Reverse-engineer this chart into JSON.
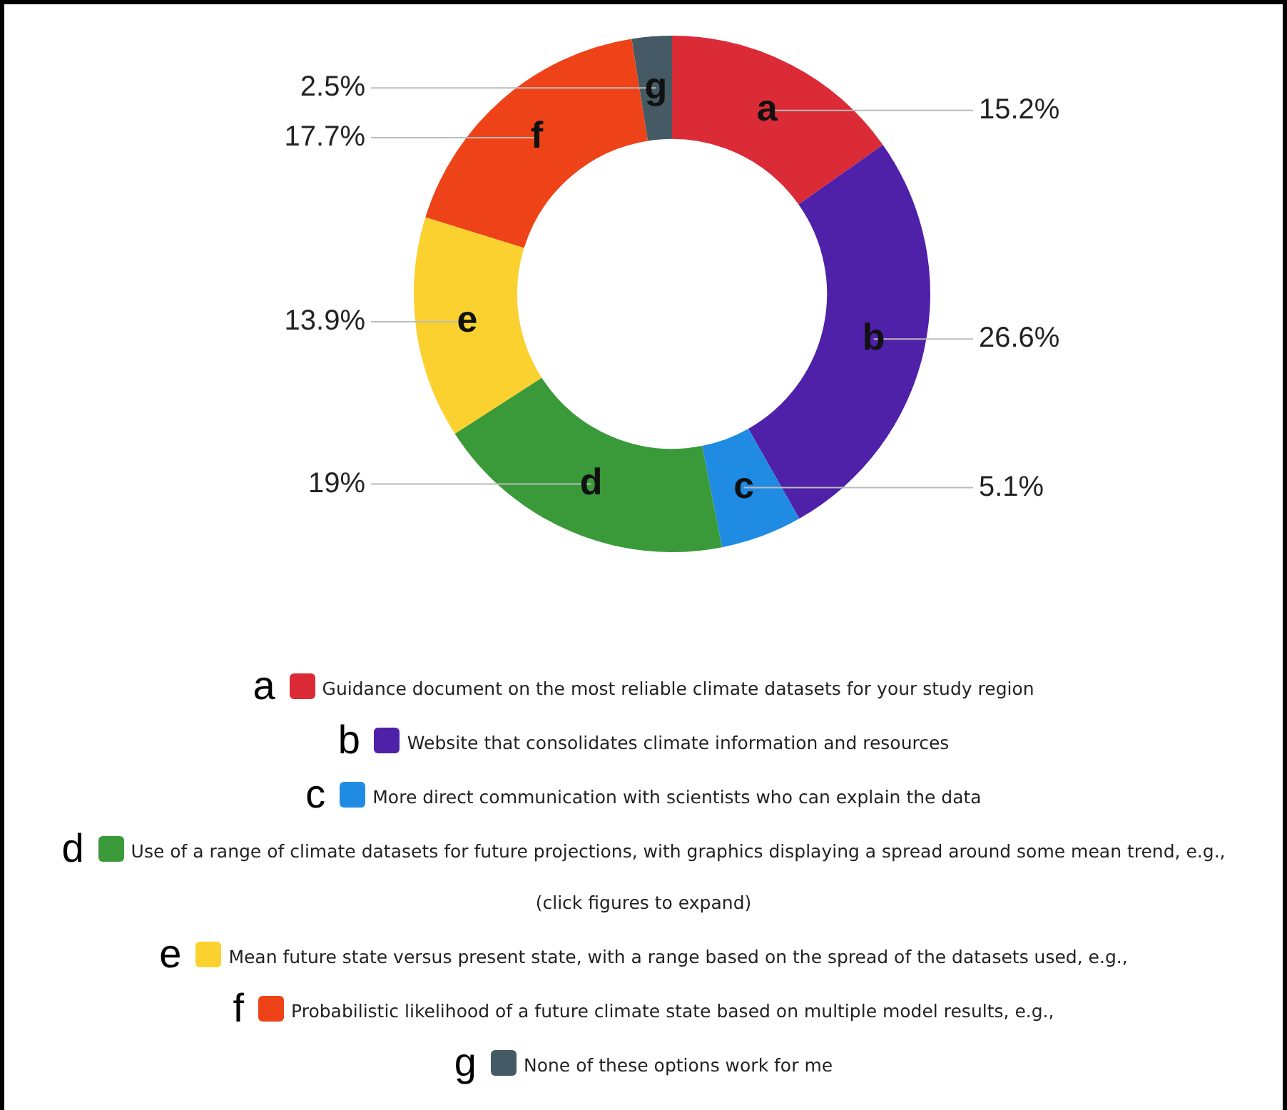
{
  "chart_data": {
    "type": "donut",
    "categories": [
      "a",
      "b",
      "c",
      "d",
      "e",
      "f",
      "g"
    ],
    "values": [
      15.2,
      26.6,
      5.1,
      19,
      13.9,
      17.7,
      2.5
    ],
    "value_labels": [
      "15.2%",
      "26.6%",
      "5.1%",
      "19%",
      "13.9%",
      "17.7%",
      "2.5%"
    ],
    "colors": [
      "#db2b37",
      "#4f20a8",
      "#1f8be3",
      "#3a9a3a",
      "#fbd12f",
      "#ee4318",
      "#455a64"
    ],
    "legend": "bottom",
    "annotations": [
      "Guidance document on the most reliable climate datasets for your study region",
      "Website that consolidates climate information and resources",
      "More direct communication with scientists who can explain the data",
      "Use of a range of climate datasets for future projections, with graphics displaying a spread around some mean trend, e.g., (click figures to expand)",
      "Mean future state versus present state, with a range based on the spread of the datasets used, e.g.,",
      "Probabilistic likelihood of a future climate state based on multiple model results, e.g.,",
      "None of these options work for me"
    ]
  }
}
